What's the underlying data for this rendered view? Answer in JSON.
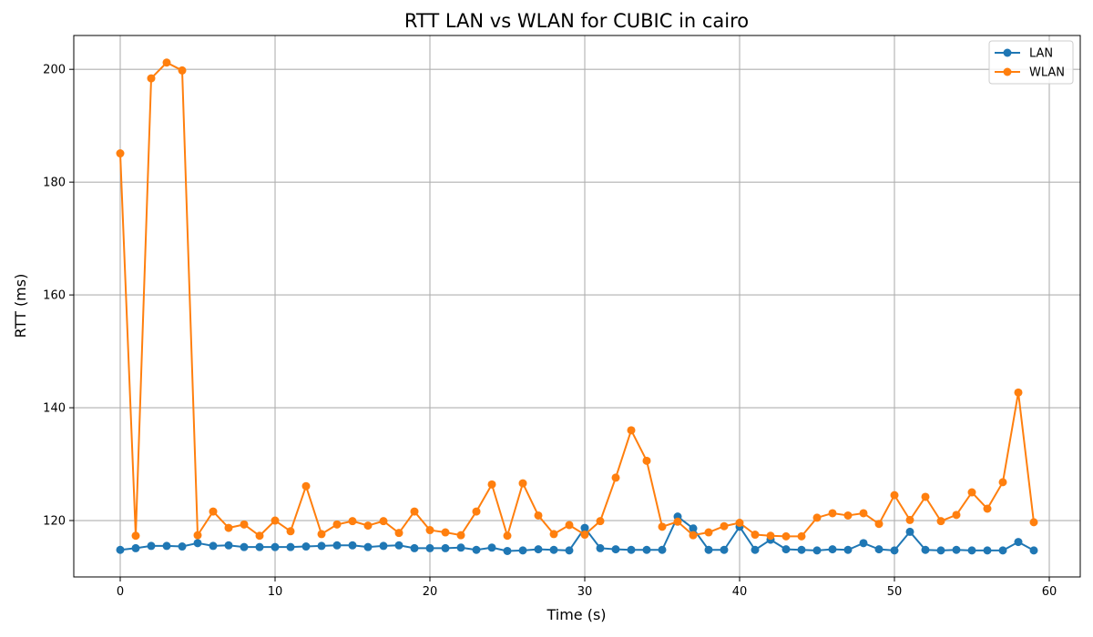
{
  "chart_data": {
    "type": "line",
    "title": "RTT LAN vs WLAN for CUBIC in cairo",
    "xlabel": "Time (s)",
    "ylabel": "RTT (ms)",
    "xlim": [
      -3,
      62
    ],
    "ylim": [
      110,
      206
    ],
    "xticks": [
      0,
      10,
      20,
      30,
      40,
      50,
      60
    ],
    "yticks": [
      120,
      140,
      160,
      180,
      200
    ],
    "grid": true,
    "legend_position": "top-right",
    "markers": true,
    "x": [
      0,
      1,
      2,
      3,
      4,
      5,
      6,
      7,
      8,
      9,
      10,
      11,
      12,
      13,
      14,
      15,
      16,
      17,
      18,
      19,
      20,
      21,
      22,
      23,
      24,
      25,
      26,
      27,
      28,
      29,
      30,
      31,
      32,
      33,
      34,
      35,
      36,
      37,
      38,
      39,
      40,
      41,
      42,
      43,
      44,
      45,
      46,
      47,
      48,
      49,
      50,
      51,
      52,
      53,
      54,
      55,
      56,
      57,
      58,
      59
    ],
    "series": [
      {
        "name": "LAN",
        "color": "#1f77b4",
        "values": [
          114.8,
          115.1,
          115.5,
          115.5,
          115.4,
          116.0,
          115.5,
          115.6,
          115.3,
          115.3,
          115.3,
          115.3,
          115.4,
          115.5,
          115.6,
          115.6,
          115.3,
          115.5,
          115.6,
          115.1,
          115.1,
          115.1,
          115.2,
          114.8,
          115.2,
          114.6,
          114.7,
          114.9,
          114.8,
          114.7,
          118.7,
          115.1,
          114.9,
          114.8,
          114.8,
          114.8,
          120.7,
          118.6,
          114.8,
          114.8,
          118.9,
          114.8,
          116.6,
          114.9,
          114.8,
          114.7,
          114.9,
          114.8,
          116.0,
          114.9,
          114.7,
          118.0,
          114.8,
          114.7,
          114.8,
          114.7,
          114.7,
          114.7,
          116.2,
          114.7
        ]
      },
      {
        "name": "WLAN",
        "color": "#ff7f0e",
        "values": [
          185.1,
          117.3,
          198.4,
          201.2,
          199.8,
          117.4,
          121.6,
          118.7,
          119.3,
          117.3,
          120.0,
          118.1,
          126.1,
          117.6,
          119.3,
          119.9,
          119.1,
          119.9,
          117.8,
          121.6,
          118.3,
          117.9,
          117.4,
          121.6,
          126.4,
          117.3,
          126.6,
          120.9,
          117.6,
          119.2,
          117.5,
          119.9,
          127.6,
          136.0,
          130.6,
          118.9,
          119.8,
          117.4,
          117.9,
          119.0,
          119.6,
          117.5,
          117.3,
          117.2,
          117.2,
          120.5,
          121.3,
          120.9,
          121.3,
          119.4,
          124.5,
          120.1,
          124.2,
          119.9,
          121.0,
          125.0,
          122.1,
          126.8,
          142.7,
          119.7
        ]
      }
    ]
  }
}
